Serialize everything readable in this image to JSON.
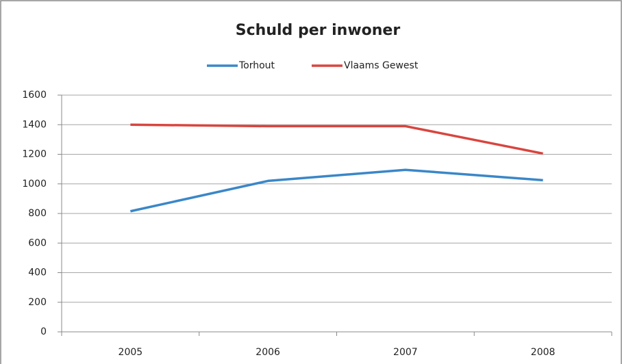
{
  "chart_data": {
    "type": "line",
    "title": "Schuld per inwoner",
    "categories": [
      "2005",
      "2006",
      "2007",
      "2008"
    ],
    "series": [
      {
        "name": "Torhout",
        "color": "#3a87c8",
        "values": [
          815,
          1020,
          1095,
          1025
        ]
      },
      {
        "name": "Vlaams Gewest",
        "color": "#d9453f",
        "values": [
          1400,
          1390,
          1390,
          1205
        ]
      }
    ],
    "ylim": [
      0,
      1600
    ],
    "yticks": [
      0,
      200,
      400,
      600,
      800,
      1000,
      1200,
      1400,
      1600
    ],
    "grid": true,
    "legend": "top"
  }
}
